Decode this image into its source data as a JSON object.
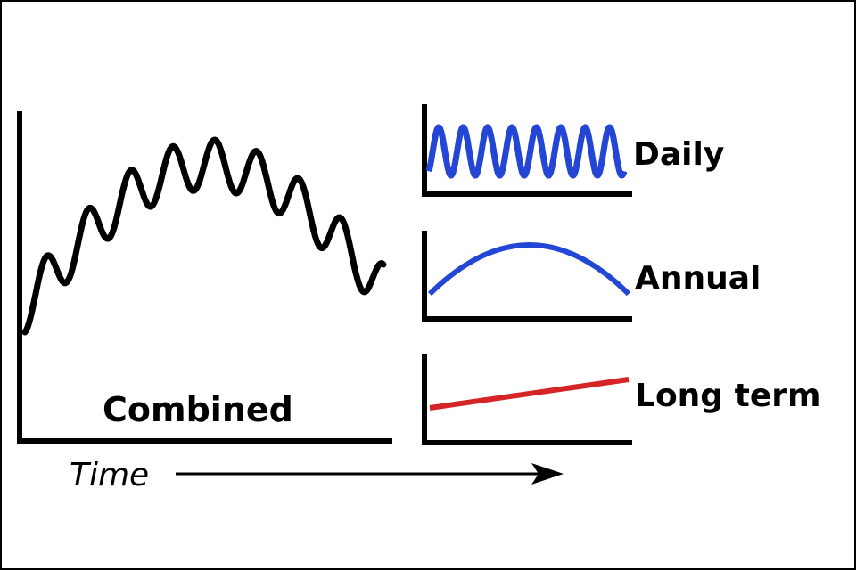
{
  "labels": {
    "combined": "Combined",
    "daily": "Daily",
    "annual": "Annual",
    "long_term": "Long term",
    "time": "Time"
  }
}
